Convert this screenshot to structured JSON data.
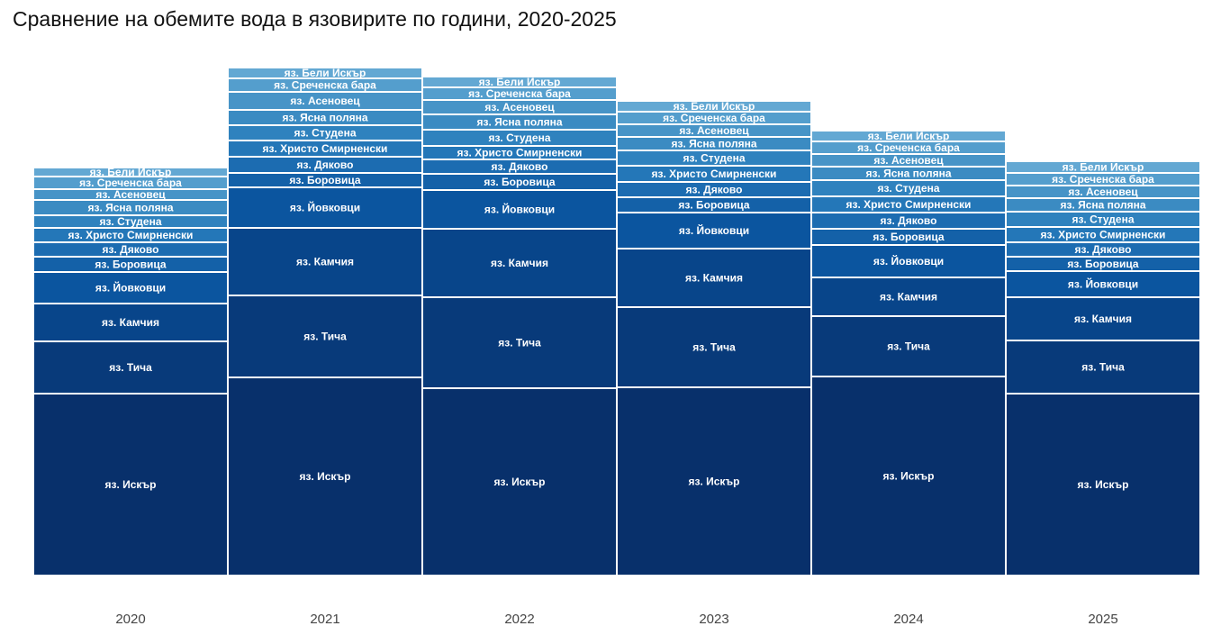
{
  "chart_data": {
    "type": "bar",
    "stacked": true,
    "title": "Сравнение на обемите вода в язовирите по години, 2020-2025",
    "xlabel": "",
    "ylabel": "",
    "categories": [
      "2020",
      "2021",
      "2022",
      "2023",
      "2024",
      "2025"
    ],
    "ylim": [
      0,
      580
    ],
    "grid": false,
    "legend": "none",
    "series": [
      {
        "name": "яз. Искър",
        "color": "#08306b",
        "values": [
          202,
          220,
          208,
          209,
          221,
          202
        ]
      },
      {
        "name": "яз. Тича",
        "color": "#083a7a",
        "values": [
          58,
          91,
          101,
          89,
          67,
          59
        ]
      },
      {
        "name": "яз. Камчия",
        "color": "#08458a",
        "values": [
          42,
          75,
          76,
          65,
          43,
          48
        ]
      },
      {
        "name": "яз. Йовковци",
        "color": "#0b559f",
        "values": [
          35,
          45,
          43,
          40,
          36,
          29
        ]
      },
      {
        "name": "яз. Боровица",
        "color": "#1461a8",
        "values": [
          17,
          16,
          18,
          17,
          18,
          16
        ]
      },
      {
        "name": "яз. Дяково",
        "color": "#1c6cb1",
        "values": [
          16,
          18,
          16,
          17,
          18,
          16
        ]
      },
      {
        "name": "яз. Христо Смирненски",
        "color": "#2477b8",
        "values": [
          16,
          18,
          15,
          18,
          18,
          17
        ]
      },
      {
        "name": "яз. Студена",
        "color": "#2f82be",
        "values": [
          14,
          17,
          18,
          17,
          18,
          17
        ]
      },
      {
        "name": "яз. Ясна поляна",
        "color": "#3b8bc2",
        "values": [
          17,
          17,
          17,
          15,
          15,
          15
        ]
      },
      {
        "name": "яз. Асеновец",
        "color": "#4794c7",
        "values": [
          12,
          20,
          16,
          14,
          14,
          14
        ]
      },
      {
        "name": "яз. Среченска бара",
        "color": "#549ecd",
        "values": [
          14,
          15,
          14,
          14,
          14,
          14
        ]
      },
      {
        "name": "яз. Бели Искър",
        "color": "#63a8d3",
        "values": [
          10,
          12,
          12,
          12,
          12,
          13
        ]
      }
    ]
  }
}
